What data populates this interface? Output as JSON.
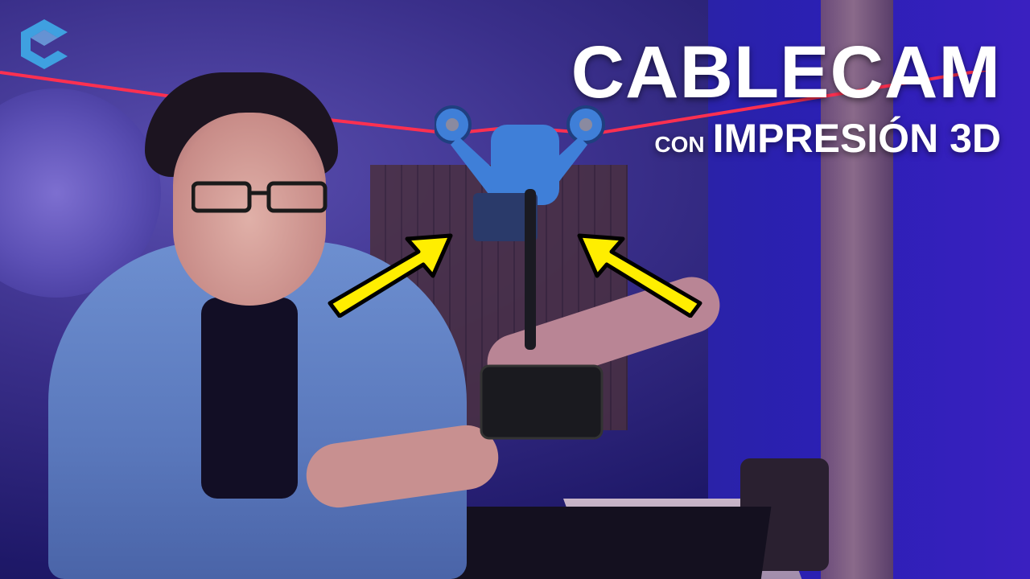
{
  "thumbnail": {
    "title_main": "CABLECAM",
    "title_connector": "CON",
    "title_sub": "IMPRESIÓN 3D"
  },
  "logo": {
    "icon": "c-logo-icon",
    "color": "#3fa0e0"
  },
  "arrows": {
    "color": "#ffee00",
    "outline": "#000000"
  },
  "colors": {
    "background": "#2b1fb5",
    "cable": "#ff3050",
    "rig": "#3f7fd8",
    "text": "#ffffff"
  }
}
